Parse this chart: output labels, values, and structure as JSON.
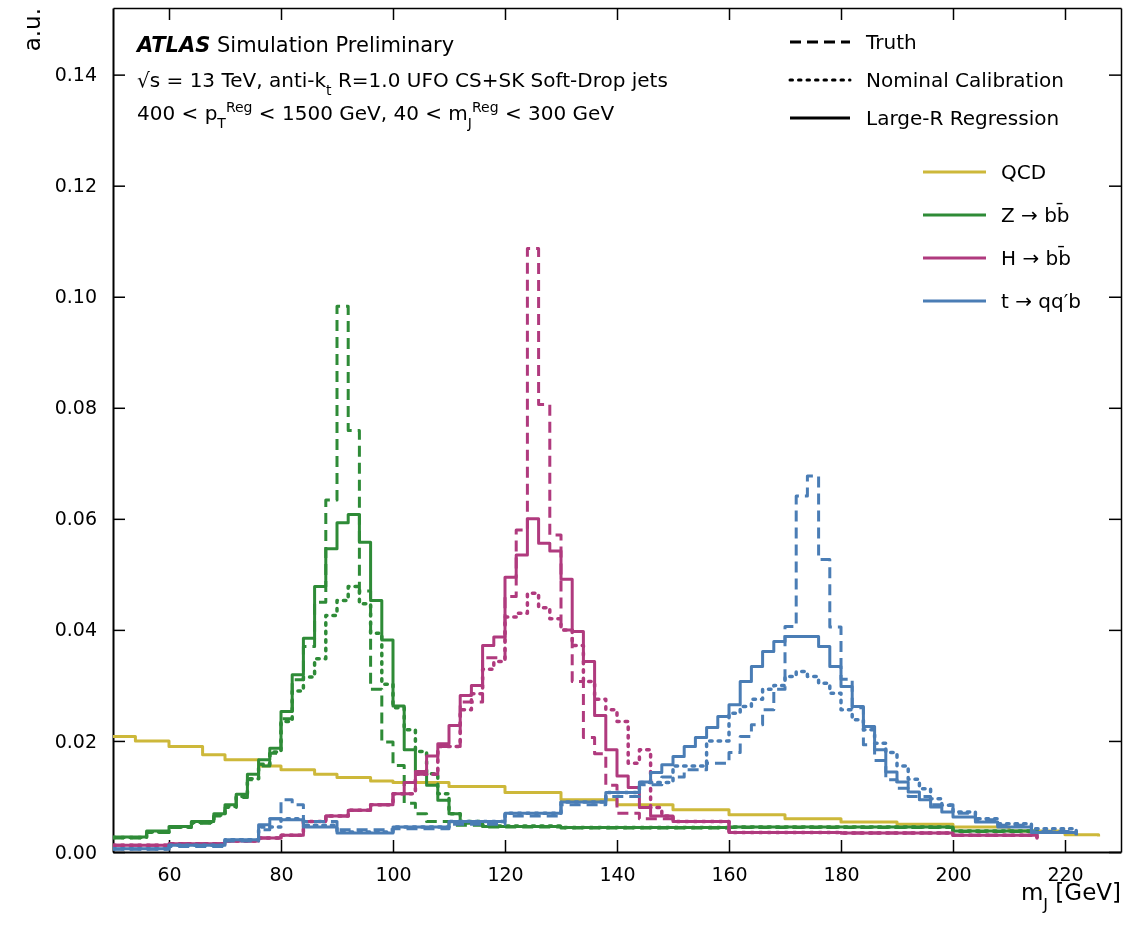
{
  "chart_data": {
    "type": "step",
    "title": "ATLAS Simulation Preliminary",
    "subtitle": "√s = 13 TeV, anti-k$_{t}$ R=1.0 UFO CS+SK Soft-Drop jets\n400 < p$_{T}$$^{Reg}$ < 1500 GeV, 40 < m$_{J}$$^{Reg}$ < 300 GeV",
    "xlabel": "m$_{J}$ [GeV]",
    "ylabel": "a.u.",
    "annotations": [
      "Truth",
      "Nominal Calibration",
      "Large-R Regression"
    ],
    "xlim": [
      50,
      230
    ],
    "ylim": [
      0,
      0.152
    ],
    "xticks": [
      60,
      80,
      100,
      120,
      140,
      160,
      180,
      200,
      220
    ],
    "yticks": [
      {
        "value": 0,
        "label": "0.00"
      },
      {
        "value": 0.02,
        "label": "0.02"
      },
      {
        "value": 0.04,
        "label": "0.04"
      },
      {
        "value": 0.06,
        "label": "0.06"
      },
      {
        "value": 0.08,
        "label": "0.08"
      },
      {
        "value": 0.1,
        "label": "0.10"
      },
      {
        "value": 0.12,
        "label": "0.12"
      },
      {
        "value": 0.14,
        "label": "0.14"
      }
    ],
    "grid": false,
    "legend": "top right",
    "series": [
      {
        "name": "QCD",
        "color": "#cdb83a",
        "line_style": "solid",
        "x": [
          50,
          54,
          60,
          66,
          70,
          76,
          80,
          86,
          90,
          96,
          100,
          110,
          120,
          130,
          140,
          150,
          160,
          170,
          180,
          190,
          200,
          210,
          220,
          226
        ],
        "values": [
          0.0208,
          0.02,
          0.019,
          0.0175,
          0.0166,
          0.0155,
          0.0148,
          0.014,
          0.0134,
          0.0128,
          0.0125,
          0.0118,
          0.0107,
          0.0094,
          0.0085,
          0.0076,
          0.0067,
          0.006,
          0.0054,
          0.005,
          0.0045,
          0.0038,
          0.0031,
          0.0028
        ]
      },
      {
        "color": "#2e8b37",
        "line_style": "dashed",
        "x": [
          50,
          56,
          60,
          64,
          68,
          70,
          72,
          74,
          76,
          78,
          80,
          82,
          84,
          86,
          88,
          90,
          92,
          94,
          96,
          98,
          100,
          102,
          104,
          106,
          110,
          116,
          130,
          160,
          200,
          215
        ],
        "values": [
          0.0025,
          0.0035,
          0.0044,
          0.0052,
          0.0065,
          0.008,
          0.0098,
          0.013,
          0.0155,
          0.0178,
          0.024,
          0.031,
          0.037,
          0.045,
          0.0634,
          0.0983,
          0.0759,
          0.047,
          0.0293,
          0.0198,
          0.0156,
          0.0088,
          0.0069,
          0.0055,
          0.0048,
          0.0045,
          0.0043,
          0.0044,
          0.0037,
          0.003
        ]
      },
      {
        "color": "#2e8b37",
        "line_style": "dotted",
        "x": [
          50,
          56,
          60,
          64,
          68,
          70,
          72,
          74,
          76,
          78,
          80,
          82,
          84,
          86,
          88,
          90,
          92,
          94,
          96,
          98,
          100,
          102,
          104,
          106,
          108,
          110,
          112,
          116,
          130,
          160,
          200,
          215
        ],
        "values": [
          0.0026,
          0.0036,
          0.0045,
          0.0053,
          0.0066,
          0.0082,
          0.01,
          0.0132,
          0.0158,
          0.018,
          0.0235,
          0.029,
          0.0315,
          0.0348,
          0.0426,
          0.0453,
          0.0478,
          0.0447,
          0.0394,
          0.0302,
          0.026,
          0.022,
          0.0181,
          0.0141,
          0.0105,
          0.0069,
          0.0055,
          0.0047,
          0.0044,
          0.0045,
          0.0038,
          0.003
        ]
      },
      {
        "name": "Z → bb̄",
        "color": "#2e8b37",
        "line_style": "solid",
        "x": [
          50,
          56,
          60,
          64,
          68,
          70,
          72,
          74,
          76,
          78,
          80,
          82,
          84,
          86,
          88,
          90,
          92,
          94,
          96,
          98,
          100,
          102,
          104,
          106,
          108,
          110,
          112,
          116,
          130,
          160,
          200,
          215
        ],
        "values": [
          0.0027,
          0.0038,
          0.0046,
          0.0055,
          0.0069,
          0.0085,
          0.0104,
          0.014,
          0.0166,
          0.0187,
          0.0253,
          0.0319,
          0.0385,
          0.0478,
          0.0546,
          0.0593,
          0.0608,
          0.0558,
          0.0453,
          0.0382,
          0.0263,
          0.0184,
          0.0145,
          0.012,
          0.0093,
          0.0069,
          0.0052,
          0.0046,
          0.0044,
          0.0045,
          0.0038,
          0.003
        ]
      },
      {
        "color": "#b03a7e",
        "line_style": "dashed",
        "x": [
          50,
          60,
          70,
          76,
          80,
          84,
          88,
          92,
          96,
          100,
          104,
          108,
          112,
          116,
          120,
          122,
          124,
          126,
          128,
          130,
          132,
          134,
          136,
          138,
          140,
          144,
          150,
          160,
          180,
          200,
          215
        ],
        "values": [
          0.0012,
          0.0015,
          0.002,
          0.0025,
          0.003,
          0.0055,
          0.0065,
          0.0075,
          0.0085,
          0.0105,
          0.014,
          0.019,
          0.027,
          0.035,
          0.046,
          0.058,
          0.1087,
          0.0806,
          0.0571,
          0.04,
          0.0307,
          0.0206,
          0.0177,
          0.012,
          0.007,
          0.006,
          0.0055,
          0.0035,
          0.0034,
          0.003,
          0.0025
        ]
      },
      {
        "color": "#b03a7e",
        "line_style": "dotted",
        "x": [
          50,
          60,
          70,
          76,
          80,
          84,
          88,
          92,
          96,
          100,
          104,
          108,
          112,
          114,
          116,
          118,
          120,
          122,
          124,
          126,
          128,
          130,
          132,
          134,
          136,
          138,
          140,
          142,
          144,
          146,
          148,
          150,
          160,
          180,
          200,
          215
        ],
        "values": [
          0.0012,
          0.0015,
          0.002,
          0.0025,
          0.003,
          0.0055,
          0.0065,
          0.0075,
          0.0085,
          0.0105,
          0.014,
          0.019,
          0.0256,
          0.0285,
          0.0329,
          0.0343,
          0.0423,
          0.043,
          0.0466,
          0.044,
          0.042,
          0.04,
          0.0372,
          0.0307,
          0.0275,
          0.0256,
          0.0235,
          0.016,
          0.0184,
          0.008,
          0.0065,
          0.0055,
          0.0035,
          0.0034,
          0.003,
          0.0025
        ]
      },
      {
        "name": "H → bb̄",
        "color": "#b03a7e",
        "line_style": "solid",
        "x": [
          50,
          60,
          70,
          76,
          80,
          84,
          88,
          92,
          96,
          100,
          102,
          104,
          106,
          108,
          110,
          112,
          114,
          116,
          118,
          120,
          122,
          124,
          126,
          128,
          130,
          132,
          134,
          136,
          138,
          140,
          142,
          144,
          146,
          150,
          160,
          180,
          200,
          215
        ],
        "values": [
          0.0012,
          0.0015,
          0.002,
          0.0025,
          0.003,
          0.0055,
          0.0065,
          0.0075,
          0.0085,
          0.0105,
          0.0125,
          0.0145,
          0.0173,
          0.0195,
          0.0228,
          0.0282,
          0.03,
          0.0372,
          0.0387,
          0.0495,
          0.0535,
          0.06,
          0.0556,
          0.0542,
          0.0491,
          0.0397,
          0.0343,
          0.0246,
          0.0184,
          0.0137,
          0.0116,
          0.008,
          0.0065,
          0.0055,
          0.0035,
          0.0034,
          0.003,
          0.0025
        ]
      },
      {
        "color": "#4a7db5",
        "line_style": "dashed",
        "x": [
          50,
          60,
          70,
          76,
          78,
          80,
          82,
          84,
          90,
          100,
          110,
          120,
          130,
          138,
          144,
          148,
          152,
          156,
          160,
          162,
          164,
          166,
          168,
          170,
          172,
          174,
          176,
          178,
          180,
          182,
          184,
          186,
          188,
          190,
          192,
          196,
          200,
          204,
          208,
          214,
          222
        ],
        "values": [
          0.0005,
          0.001,
          0.002,
          0.004,
          0.006,
          0.0094,
          0.0085,
          0.0055,
          0.004,
          0.0042,
          0.005,
          0.0065,
          0.0085,
          0.01,
          0.0121,
          0.0135,
          0.0148,
          0.016,
          0.0179,
          0.0208,
          0.0229,
          0.0256,
          0.0293,
          0.0406,
          0.0641,
          0.0677,
          0.0527,
          0.0405,
          0.0311,
          0.026,
          0.0193,
          0.0165,
          0.013,
          0.0115,
          0.01,
          0.0085,
          0.007,
          0.0058,
          0.0048,
          0.0037,
          0.003
        ]
      },
      {
        "color": "#4a7db5",
        "line_style": "dotted",
        "x": [
          50,
          60,
          70,
          76,
          80,
          84,
          90,
          100,
          110,
          120,
          130,
          138,
          144,
          150,
          156,
          160,
          162,
          164,
          166,
          168,
          170,
          172,
          174,
          176,
          178,
          180,
          182,
          184,
          186,
          188,
          190,
          192,
          194,
          196,
          198,
          200,
          204,
          208,
          214,
          222
        ],
        "values": [
          0.0006,
          0.0012,
          0.0022,
          0.0045,
          0.006,
          0.0048,
          0.0036,
          0.0045,
          0.0055,
          0.007,
          0.009,
          0.0107,
          0.0125,
          0.0155,
          0.02,
          0.025,
          0.0262,
          0.0275,
          0.0293,
          0.03,
          0.0316,
          0.0325,
          0.0316,
          0.0304,
          0.0286,
          0.0256,
          0.0238,
          0.022,
          0.0196,
          0.0179,
          0.0155,
          0.0131,
          0.0114,
          0.0096,
          0.0084,
          0.0072,
          0.006,
          0.0051,
          0.0042,
          0.0031
        ]
      },
      {
        "name": "t → qq′b",
        "color": "#4a7db5",
        "line_style": "solid",
        "x": [
          50,
          60,
          70,
          76,
          78,
          80,
          84,
          90,
          100,
          110,
          120,
          130,
          138,
          144,
          146,
          148,
          150,
          152,
          154,
          156,
          158,
          160,
          162,
          164,
          166,
          168,
          170,
          172,
          174,
          176,
          178,
          180,
          182,
          184,
          186,
          188,
          190,
          192,
          194,
          196,
          198,
          200,
          204,
          208,
          214,
          222
        ],
        "values": [
          0.0006,
          0.0012,
          0.0022,
          0.0049,
          0.006,
          0.0058,
          0.0045,
          0.0034,
          0.0045,
          0.0055,
          0.007,
          0.009,
          0.0107,
          0.0126,
          0.0143,
          0.0157,
          0.0172,
          0.019,
          0.0206,
          0.0224,
          0.0244,
          0.0265,
          0.0307,
          0.0334,
          0.0361,
          0.0379,
          0.0388,
          0.0388,
          0.0388,
          0.037,
          0.0334,
          0.0298,
          0.0262,
          0.0226,
          0.0184,
          0.0144,
          0.0126,
          0.0108,
          0.0094,
          0.0081,
          0.0072,
          0.0063,
          0.0054,
          0.0045,
          0.0035,
          0.003
        ]
      }
    ]
  }
}
